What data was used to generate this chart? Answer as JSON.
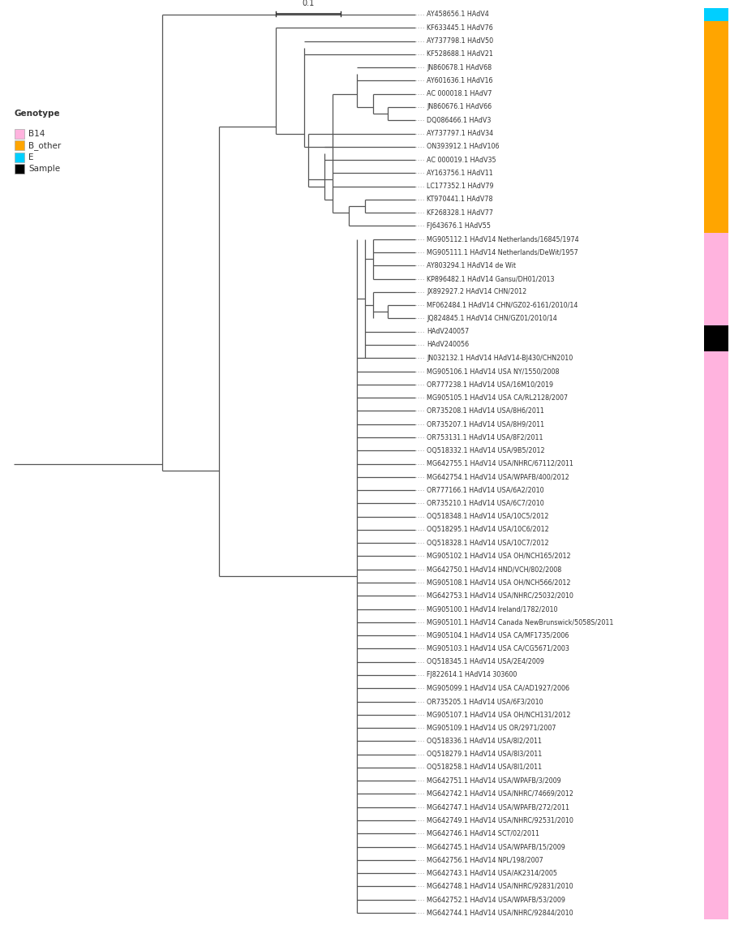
{
  "figsize": [
    9.0,
    11.4
  ],
  "dpi": 100,
  "background": "#ffffff",
  "legend_title": "Genotype",
  "legend_items": [
    {
      "label": "B14",
      "color": "#ffb3de"
    },
    {
      "label": "B_other",
      "color": "#ffa500"
    },
    {
      "label": "E",
      "color": "#00cfff"
    },
    {
      "label": "Sample",
      "color": "#000000"
    }
  ],
  "genotype_colors": {
    "E": "#00cfff",
    "B_other": "#ffa500",
    "B14": "#ffb3de",
    "Sample": "#000000"
  },
  "taxa": [
    {
      "label": "AY458656.1 HAdV4",
      "genotype": "E"
    },
    {
      "label": "KF633445.1 HAdV76",
      "genotype": "B_other"
    },
    {
      "label": "AY737798.1 HAdV50",
      "genotype": "B_other"
    },
    {
      "label": "KF528688.1 HAdV21",
      "genotype": "B_other"
    },
    {
      "label": "JN860678.1 HAdV68",
      "genotype": "B_other"
    },
    {
      "label": "AY601636.1 HAdV16",
      "genotype": "B_other"
    },
    {
      "label": "AC 000018.1 HAdV7",
      "genotype": "B_other"
    },
    {
      "label": "JN860676.1 HAdV66",
      "genotype": "B_other"
    },
    {
      "label": "DQ086466.1 HAdV3",
      "genotype": "B_other"
    },
    {
      "label": "AY737797.1 HAdV34",
      "genotype": "B_other"
    },
    {
      "label": "ON393912.1 HAdV106",
      "genotype": "B_other"
    },
    {
      "label": "AC 000019.1 HAdV35",
      "genotype": "B_other"
    },
    {
      "label": "AY163756.1 HAdV11",
      "genotype": "B_other"
    },
    {
      "label": "LC177352.1 HAdV79",
      "genotype": "B_other"
    },
    {
      "label": "KT970441.1 HAdV78",
      "genotype": "B_other"
    },
    {
      "label": "KF268328.1 HAdV77",
      "genotype": "B_other"
    },
    {
      "label": "FJ643676.1 HAdV55",
      "genotype": "B_other"
    },
    {
      "label": "MG905112.1 HAdV14 Netherlands/16845/1974",
      "genotype": "B14"
    },
    {
      "label": "MG905111.1 HAdV14 Netherlands/DeWit/1957",
      "genotype": "B14"
    },
    {
      "label": "AY803294.1 HAdV14 de Wit",
      "genotype": "B14"
    },
    {
      "label": "KP896482.1 HAdV14 Gansu/DH01/2013",
      "genotype": "B14"
    },
    {
      "label": "JX892927.2 HAdV14 CHN/2012",
      "genotype": "B14"
    },
    {
      "label": "MF062484.1 HAdV14 CHN/GZ02-6161/2010/14",
      "genotype": "B14"
    },
    {
      "label": "JQ824845.1 HAdV14 CHN/GZ01/2010/14",
      "genotype": "B14"
    },
    {
      "label": "HAdV240057",
      "genotype": "Sample"
    },
    {
      "label": "HAdV240056",
      "genotype": "Sample"
    },
    {
      "label": "JN032132.1 HAdV14 HAdV14-BJ430/CHN2010",
      "genotype": "B14"
    },
    {
      "label": "MG905106.1 HAdV14 USA NY/1550/2008",
      "genotype": "B14"
    },
    {
      "label": "OR777238.1 HAdV14 USA/16M10/2019",
      "genotype": "B14"
    },
    {
      "label": "MG905105.1 HAdV14 USA CA/RL2128/2007",
      "genotype": "B14"
    },
    {
      "label": "OR735208.1 HAdV14 USA/8H6/2011",
      "genotype": "B14"
    },
    {
      "label": "OR735207.1 HAdV14 USA/8H9/2011",
      "genotype": "B14"
    },
    {
      "label": "OR753131.1 HAdV14 USA/8F2/2011",
      "genotype": "B14"
    },
    {
      "label": "OQ518332.1 HAdV14 USA/9B5/2012",
      "genotype": "B14"
    },
    {
      "label": "MG642755.1 HAdV14 USA/NHRC/67112/2011",
      "genotype": "B14"
    },
    {
      "label": "MG642754.1 HAdV14 USA/WPAFB/400/2012",
      "genotype": "B14"
    },
    {
      "label": "OR777166.1 HAdV14 USA/6A2/2010",
      "genotype": "B14"
    },
    {
      "label": "OR735210.1 HAdV14 USA/6C7/2010",
      "genotype": "B14"
    },
    {
      "label": "OQ518348.1 HAdV14 USA/10C5/2012",
      "genotype": "B14"
    },
    {
      "label": "OQ518295.1 HAdV14 USA/10C6/2012",
      "genotype": "B14"
    },
    {
      "label": "OQ518328.1 HAdV14 USA/10C7/2012",
      "genotype": "B14"
    },
    {
      "label": "MG905102.1 HAdV14 USA OH/NCH165/2012",
      "genotype": "B14"
    },
    {
      "label": "MG642750.1 HAdV14 HND/VCH/802/2008",
      "genotype": "B14"
    },
    {
      "label": "MG905108.1 HAdV14 USA OH/NCH566/2012",
      "genotype": "B14"
    },
    {
      "label": "MG642753.1 HAdV14 USA/NHRC/25032/2010",
      "genotype": "B14"
    },
    {
      "label": "MG905100.1 HAdV14 Ireland/1782/2010",
      "genotype": "B14"
    },
    {
      "label": "MG905101.1 HAdV14 Canada NewBrunswick/5058S/2011",
      "genotype": "B14"
    },
    {
      "label": "MG905104.1 HAdV14 USA CA/MF1735/2006",
      "genotype": "B14"
    },
    {
      "label": "MG905103.1 HAdV14 USA CA/CG5671/2003",
      "genotype": "B14"
    },
    {
      "label": "OQ518345.1 HAdV14 USA/2E4/2009",
      "genotype": "B14"
    },
    {
      "label": "FJ822614.1 HAdV14 303600",
      "genotype": "B14"
    },
    {
      "label": "MG905099.1 HAdV14 USA CA/AD1927/2006",
      "genotype": "B14"
    },
    {
      "label": "OR735205.1 HAdV14 USA/6F3/2010",
      "genotype": "B14"
    },
    {
      "label": "MG905107.1 HAdV14 USA OH/NCH131/2012",
      "genotype": "B14"
    },
    {
      "label": "MG905109.1 HAdV14 US OR/2971/2007",
      "genotype": "B14"
    },
    {
      "label": "OQ518336.1 HAdV14 USA/8I2/2011",
      "genotype": "B14"
    },
    {
      "label": "OQ518279.1 HAdV14 USA/8I3/2011",
      "genotype": "B14"
    },
    {
      "label": "OQ518258.1 HAdV14 USA/8I1/2011",
      "genotype": "B14"
    },
    {
      "label": "MG642751.1 HAdV14 USA/WPAFB/3/2009",
      "genotype": "B14"
    },
    {
      "label": "MG642742.1 HAdV14 USA/NHRC/74669/2012",
      "genotype": "B14"
    },
    {
      "label": "MG642747.1 HAdV14 USA/WPAFB/272/2011",
      "genotype": "B14"
    },
    {
      "label": "MG642749.1 HAdV14 USA/NHRC/92531/2010",
      "genotype": "B14"
    },
    {
      "label": "MG642746.1 HAdV14 SCT/02/2011",
      "genotype": "B14"
    },
    {
      "label": "MG642745.1 HAdV14 USA/WPAFB/15/2009",
      "genotype": "B14"
    },
    {
      "label": "MG642756.1 HAdV14 NPL/198/2007",
      "genotype": "B14"
    },
    {
      "label": "MG642743.1 HAdV14 USA/AK2314/2005",
      "genotype": "B14"
    },
    {
      "label": "MG642748.1 HAdV14 USA/NHRC/92831/2010",
      "genotype": "B14"
    },
    {
      "label": "MG642752.1 HAdV14 USA/WPAFB/53/2009",
      "genotype": "B14"
    },
    {
      "label": "MG642744.1 HAdV14 USA/NHRC/92844/2010",
      "genotype": "B14"
    }
  ],
  "tree_line_color": "#555555",
  "dot_line_color": "#999999",
  "text_color": "#333333",
  "label_fontsize": 5.8,
  "legend_fontsize": 7.5,
  "scalebar_label": "0.1"
}
